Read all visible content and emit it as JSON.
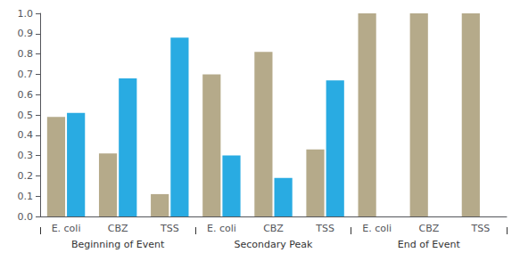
{
  "chart_data": {
    "type": "bar",
    "categories": [
      "E. coli",
      "CBZ",
      "TSS",
      "E. coli",
      "CBZ",
      "TSS",
      "E. coli",
      "CBZ",
      "TSS"
    ],
    "groups": [
      "Beginning of Event",
      "Secondary Peak",
      "End of Event"
    ],
    "series": [
      {
        "color": "#b5aa8a",
        "values": [
          0.49,
          0.31,
          0.11,
          0.7,
          0.81,
          0.33,
          1.0,
          1.0,
          1.0
        ]
      },
      {
        "color": "#29abe2",
        "values": [
          0.51,
          0.68,
          0.88,
          0.3,
          0.19,
          0.67,
          0.0,
          0.0,
          0.0
        ]
      }
    ],
    "ylim": [
      0.0,
      1.0
    ],
    "yticks": [
      {
        "value": 0.0,
        "label": "0.0"
      },
      0.1,
      0.2,
      0.3,
      0.4,
      0.5,
      0.6,
      0.7,
      0.8,
      0.9,
      {
        "value": 1.0,
        "label": "1.0"
      }
    ],
    "grid": false
  }
}
